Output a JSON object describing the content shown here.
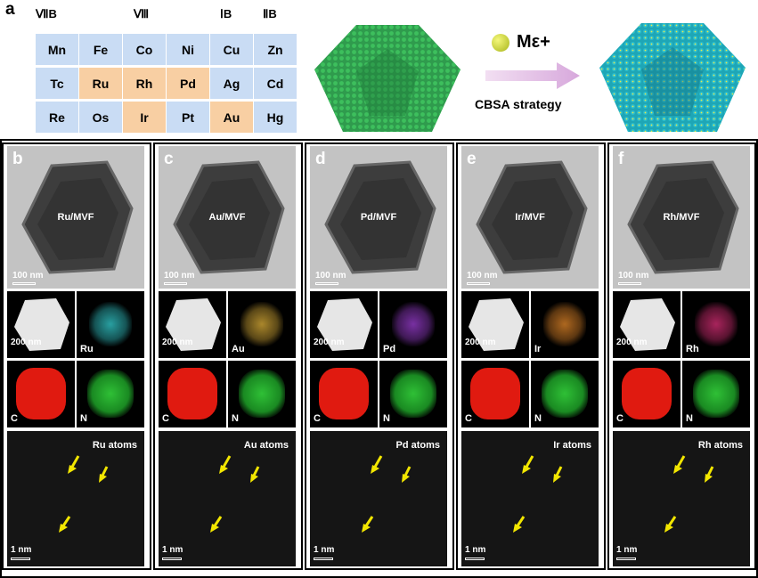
{
  "panel_a": {
    "letter": "a",
    "group_headers": [
      "ⅦB",
      "Ⅷ",
      "ⅠB",
      "ⅡB"
    ],
    "rows": [
      [
        "Mn",
        "Fe",
        "Co",
        "Ni",
        "Cu",
        "Zn"
      ],
      [
        "Tc",
        "Ru",
        "Rh",
        "Pd",
        "Ag",
        "Cd"
      ],
      [
        "Re",
        "Os",
        "Ir",
        "Pt",
        "Au",
        "Hg"
      ]
    ],
    "highlighted": [
      "Ru",
      "Rh",
      "Pd",
      "Ir",
      "Au"
    ],
    "colors": {
      "normal": "#c9dcf4",
      "highlight": "#f8cfa3"
    },
    "metal_ion": "Mε+",
    "strategy": "CBSA strategy"
  },
  "columns": [
    {
      "letter": "b",
      "tem_label": "Ru/MVF",
      "tem_scale": "100 nm",
      "haadf_scale": "200 nm",
      "metal": "Ru",
      "c_label": "C",
      "n_label": "N",
      "atoms_label": "Ru atoms",
      "atoms_scale": "1 nm",
      "map_color": "#36d4d6"
    },
    {
      "letter": "c",
      "tem_label": "Au/MVF",
      "tem_scale": "100 nm",
      "haadf_scale": "200 nm",
      "metal": "Au",
      "c_label": "C",
      "n_label": "N",
      "atoms_label": "Au atoms",
      "atoms_scale": "1 nm",
      "map_color": "#e3b43a"
    },
    {
      "letter": "d",
      "tem_label": "Pd/MVF",
      "tem_scale": "100 nm",
      "haadf_scale": "200 nm",
      "metal": "Pd",
      "c_label": "C",
      "n_label": "N",
      "atoms_label": "Pd atoms",
      "atoms_scale": "1 nm",
      "map_color": "#a040d8"
    },
    {
      "letter": "e",
      "tem_label": "Ir/MVF",
      "tem_scale": "100 nm",
      "haadf_scale": "200 nm",
      "metal": "Ir",
      "c_label": "C",
      "n_label": "N",
      "atoms_label": "Ir atoms",
      "atoms_scale": "1 nm",
      "map_color": "#e88a2a"
    },
    {
      "letter": "f",
      "tem_label": "Rh/MVF",
      "tem_scale": "100 nm",
      "haadf_scale": "200 nm",
      "metal": "Rh",
      "c_label": "C",
      "n_label": "N",
      "atoms_label": "Rh atoms",
      "atoms_scale": "1 nm",
      "map_color": "#e0307a"
    }
  ]
}
